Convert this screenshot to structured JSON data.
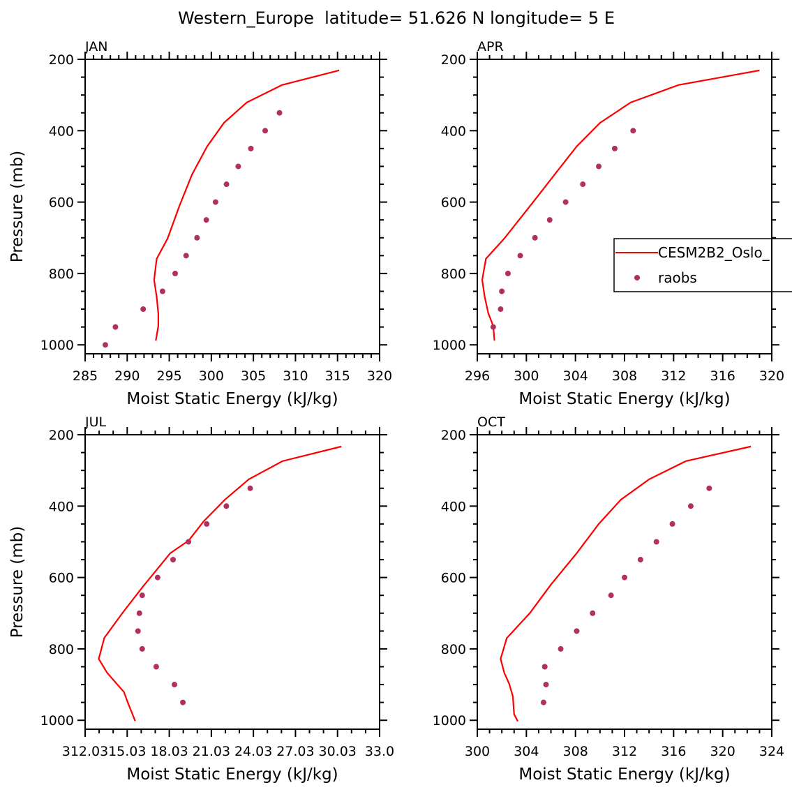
{
  "title": "Western_Europe  latitude= 51.626 N longitude= 5 E",
  "legend": {
    "placement": "right of APR panel",
    "entries": [
      {
        "label": "CESM2B2_Oslo_",
        "style": "line",
        "color": "#ff0000"
      },
      {
        "label": "raobs",
        "style": "marker",
        "color": "#b03060"
      }
    ]
  },
  "colors": {
    "model": "#ff0000",
    "obs": "#b03060"
  },
  "chart_data": [
    {
      "type": "line",
      "panel": "JAN",
      "xlabel": "Moist Static Energy (kJ/kg)",
      "ylabel": "Pressure (mb)",
      "xlim": [
        285,
        320
      ],
      "xticks": [
        285,
        290,
        295,
        300,
        305,
        310,
        315,
        320
      ],
      "xtick_labels": [
        "285",
        "290",
        "295",
        "300",
        "305",
        "310",
        "315",
        "320"
      ],
      "xminor": 1,
      "ylim": [
        1025,
        200
      ],
      "yticks": [
        200,
        400,
        600,
        800,
        1000
      ],
      "ytick_labels": [
        "200",
        "400",
        "600",
        "800",
        "1000"
      ],
      "series": [
        {
          "name": "CESM2B2_Oslo_",
          "type": "line",
          "p": [
            231,
            272,
            321,
            378,
            444,
            523,
            611,
            702,
            759,
            818,
            865,
            912,
            947,
            988
          ],
          "x": [
            315.2,
            308.4,
            304.2,
            301.5,
            299.5,
            297.7,
            296.2,
            294.8,
            293.5,
            293.2,
            293.5,
            293.7,
            293.7,
            293.4
          ]
        },
        {
          "name": "raobs",
          "type": "scatter",
          "p": [
            350,
            400,
            450,
            500,
            550,
            600,
            650,
            700,
            750,
            800,
            850,
            900,
            950,
            1000
          ],
          "x": [
            308.1,
            306.4,
            304.7,
            303.2,
            301.8,
            300.5,
            299.4,
            298.3,
            297.0,
            295.7,
            294.2,
            291.9,
            288.6,
            287.4
          ]
        }
      ]
    },
    {
      "type": "line",
      "panel": "APR",
      "xlabel": "Moist Static Energy (kJ/kg)",
      "ylabel": "",
      "xlim": [
        296,
        320
      ],
      "xticks": [
        296,
        300,
        304,
        308,
        312,
        316,
        320
      ],
      "xtick_labels": [
        "296",
        "300",
        "304",
        "308",
        "312",
        "316",
        "320"
      ],
      "xminor": 1,
      "ylim": [
        1025,
        200
      ],
      "yticks": [
        200,
        400,
        600,
        800,
        1000
      ],
      "ytick_labels": [
        "200",
        "400",
        "600",
        "800",
        "1000"
      ],
      "series": [
        {
          "name": "CESM2B2_Oslo_",
          "type": "line",
          "p": [
            231,
            272,
            321,
            378,
            444,
            523,
            611,
            702,
            759,
            818,
            865,
            912,
            947,
            988
          ],
          "x": [
            319.0,
            312.4,
            308.5,
            306.0,
            304.1,
            302.3,
            300.3,
            298.2,
            296.7,
            296.4,
            296.6,
            296.9,
            297.3,
            297.4
          ]
        },
        {
          "name": "raobs",
          "type": "scatter",
          "p": [
            400,
            450,
            500,
            550,
            600,
            650,
            700,
            750,
            800,
            850,
            900,
            950
          ],
          "x": [
            308.7,
            307.2,
            305.9,
            304.6,
            303.2,
            301.9,
            300.7,
            299.5,
            298.5,
            298.0,
            297.9,
            297.3
          ]
        }
      ]
    },
    {
      "type": "line",
      "panel": "JUL",
      "xlabel": "Moist Static Energy (kJ/kg)",
      "ylabel": "Pressure (mb)",
      "xlim": [
        312.03,
        333.03
      ],
      "xticks": [
        312.03,
        315.03,
        318.03,
        321.03,
        324.03,
        327.03,
        330.03,
        333.03
      ],
      "xtick_labels": [
        "312.03",
        "15.03",
        "18.03",
        "21.03",
        "24.03",
        "27.03",
        "30.03",
        "33.0"
      ],
      "xminor": 1,
      "ylim": [
        1025,
        200
      ],
      "yticks": [
        200,
        400,
        600,
        800,
        1000
      ],
      "ytick_labels": [
        "200",
        "400",
        "600",
        "800",
        "1000"
      ],
      "series": [
        {
          "name": "CESM2B2_Oslo_",
          "type": "line",
          "p": [
            233,
            274,
            325,
            382,
            442,
            497,
            532,
            628,
            699,
            769,
            828,
            867,
            894,
            921,
            953,
            1002
          ],
          "x": [
            330.3,
            326.1,
            323.7,
            322.0,
            320.5,
            319.4,
            318.1,
            316.1,
            314.7,
            313.4,
            313.0,
            313.6,
            314.2,
            314.8,
            315.1,
            315.6
          ]
        },
        {
          "name": "raobs",
          "type": "scatter",
          "p": [
            350,
            400,
            450,
            500,
            550,
            600,
            650,
            700,
            750,
            800,
            850,
            900,
            950
          ],
          "x": [
            323.8,
            322.1,
            320.7,
            319.4,
            318.3,
            317.2,
            316.1,
            315.9,
            315.8,
            316.1,
            317.1,
            318.4,
            319.0
          ]
        }
      ]
    },
    {
      "type": "line",
      "panel": "OCT",
      "xlabel": "Moist Static Energy (kJ/kg)",
      "ylabel": "",
      "xlim": [
        300,
        324
      ],
      "xticks": [
        300,
        304,
        308,
        312,
        316,
        320,
        324
      ],
      "xtick_labels": [
        "300",
        "304",
        "308",
        "312",
        "316",
        "320",
        "324"
      ],
      "xminor": 1,
      "ylim": [
        1025,
        200
      ],
      "yticks": [
        200,
        400,
        600,
        800,
        1000
      ],
      "ytick_labels": [
        "200",
        "400",
        "600",
        "800",
        "1000"
      ],
      "series": [
        {
          "name": "CESM2B2_Oslo_",
          "type": "line",
          "p": [
            233,
            274,
            325,
            382,
            450,
            532,
            620,
            699,
            770,
            828,
            867,
            898,
            933,
            983,
            1003
          ],
          "x": [
            322.3,
            317.0,
            314.0,
            311.7,
            309.9,
            308.1,
            306.0,
            304.3,
            302.4,
            301.9,
            302.2,
            302.6,
            302.9,
            303.0,
            303.3
          ]
        },
        {
          "name": "raobs",
          "type": "scatter",
          "p": [
            350,
            400,
            450,
            500,
            550,
            600,
            650,
            700,
            750,
            800,
            850,
            900,
            950
          ],
          "x": [
            318.9,
            317.4,
            315.9,
            314.6,
            313.3,
            312.0,
            310.9,
            309.4,
            308.1,
            306.8,
            305.5,
            305.6,
            305.4
          ]
        }
      ]
    }
  ]
}
